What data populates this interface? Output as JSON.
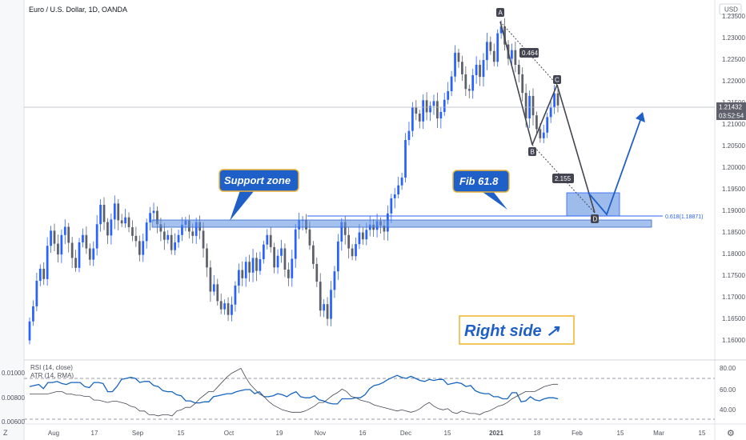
{
  "header": {
    "symbol_title": "Euro / U.S. Dollar, 1D, OANDA",
    "currency_badge": "USD"
  },
  "price_tags": {
    "last_price": "1.21432",
    "countdown": "03:52:54",
    "fib_label": "0.618(1.18871)"
  },
  "pattern": {
    "points": [
      "A",
      "B",
      "C",
      "D"
    ],
    "ratio_ac": "0.464",
    "ratio_bd": "2.155"
  },
  "callouts": {
    "support": "Support zone",
    "fib": "Fib 61.8",
    "right_side": "Right side ↗"
  },
  "indicator": {
    "legend_rsi": "RSI (14, close)",
    "legend_atr": "ATR (14, RMA)",
    "left_ticks": [
      "0.01000",
      "0.00800",
      "0.00600"
    ],
    "right_ticks": [
      "80.00",
      "60.00",
      "40.00"
    ]
  },
  "time_axis": {
    "z_icon_label": "Z",
    "gear_icon_label": "⚙"
  },
  "chart_data": {
    "type": "candlestick",
    "x_tick_labels": [
      "Aug",
      "17",
      "Sep",
      "15",
      "Oct",
      "19",
      "Nov",
      "16",
      "Dec",
      "15",
      "2021",
      "18",
      "Feb",
      "15",
      "Mar",
      "15"
    ],
    "y_tick_labels": [
      "1.23500",
      "1.23000",
      "1.22500",
      "1.22000",
      "1.21500",
      "1.21000",
      "1.20500",
      "1.20000",
      "1.19500",
      "1.19000",
      "1.18500",
      "1.18000",
      "1.17500",
      "1.17000",
      "1.16500",
      "1.16000"
    ],
    "ylim": [
      1.1575,
      1.2375
    ],
    "last_price": 1.21432,
    "fib_level": 1.18871,
    "support_zone": [
      1.1866,
      1.188
    ],
    "colors": {
      "up": "#2962ff",
      "down": "#5d606b",
      "pattern": "#434651",
      "arrow": "#2962ff",
      "zone": "#5b8fe0"
    },
    "candles": [
      [
        1.1599,
        1.1643
      ],
      [
        1.1643,
        1.1678
      ],
      [
        1.1678,
        1.1737
      ],
      [
        1.1737,
        1.1765
      ],
      [
        1.1765,
        1.1741
      ],
      [
        1.1741,
        1.1818
      ],
      [
        1.1818,
        1.1853
      ],
      [
        1.1853,
        1.1823
      ],
      [
        1.1823,
        1.1798
      ],
      [
        1.1798,
        1.1843
      ],
      [
        1.1843,
        1.1862
      ],
      [
        1.1862,
        1.1825
      ],
      [
        1.1825,
        1.179
      ],
      [
        1.179,
        1.1767
      ],
      [
        1.1767,
        1.1826
      ],
      [
        1.1826,
        1.1843
      ],
      [
        1.1843,
        1.1812
      ],
      [
        1.1812,
        1.1786
      ],
      [
        1.1786,
        1.1812
      ],
      [
        1.1812,
        1.1868
      ],
      [
        1.1868,
        1.1913
      ],
      [
        1.1913,
        1.1873
      ],
      [
        1.1873,
        1.1842
      ],
      [
        1.1842,
        1.1879
      ],
      [
        1.1879,
        1.1916
      ],
      [
        1.1916,
        1.1877
      ],
      [
        1.1877,
        1.187
      ],
      [
        1.187,
        1.1884
      ],
      [
        1.1884,
        1.1861
      ],
      [
        1.1861,
        1.1841
      ],
      [
        1.1841,
        1.1829
      ],
      [
        1.1829,
        1.1797
      ],
      [
        1.1797,
        1.1829
      ],
      [
        1.1829,
        1.1872
      ],
      [
        1.1872,
        1.1894
      ],
      [
        1.1894,
        1.1899
      ],
      [
        1.1899,
        1.1868
      ],
      [
        1.1868,
        1.1851
      ],
      [
        1.1851,
        1.1832
      ],
      [
        1.1832,
        1.1843
      ],
      [
        1.1843,
        1.1808
      ],
      [
        1.1808,
        1.1826
      ],
      [
        1.1826,
        1.1843
      ],
      [
        1.1843,
        1.1867
      ],
      [
        1.1867,
        1.1876
      ],
      [
        1.1876,
        1.1851
      ],
      [
        1.1851,
        1.1841
      ],
      [
        1.1841,
        1.1873
      ],
      [
        1.1873,
        1.1853
      ],
      [
        1.1853,
        1.1812
      ],
      [
        1.1812,
        1.1768
      ],
      [
        1.1768,
        1.1712
      ],
      [
        1.1712,
        1.1729
      ],
      [
        1.1729,
        1.169
      ],
      [
        1.169,
        1.1671
      ],
      [
        1.1671,
        1.1685
      ],
      [
        1.1685,
        1.1658
      ],
      [
        1.1658,
        1.1682
      ],
      [
        1.1682,
        1.1726
      ],
      [
        1.1726,
        1.1762
      ],
      [
        1.1762,
        1.1743
      ],
      [
        1.1743,
        1.1781
      ],
      [
        1.1781,
        1.1756
      ],
      [
        1.1756,
        1.179
      ],
      [
        1.179,
        1.176
      ],
      [
        1.176,
        1.1787
      ],
      [
        1.1787,
        1.1821
      ],
      [
        1.1821,
        1.1843
      ],
      [
        1.1843,
        1.1815
      ],
      [
        1.1815,
        1.1768
      ],
      [
        1.1768,
        1.1795
      ],
      [
        1.1795,
        1.1812
      ],
      [
        1.1812,
        1.1763
      ],
      [
        1.1763,
        1.1743
      ],
      [
        1.1743,
        1.1788
      ],
      [
        1.1788,
        1.1856
      ],
      [
        1.1856,
        1.1877
      ],
      [
        1.1877,
        1.1878
      ],
      [
        1.1878,
        1.1856
      ],
      [
        1.1856,
        1.1819
      ],
      [
        1.1819,
        1.1776
      ],
      [
        1.1776,
        1.1735
      ],
      [
        1.1735,
        1.1668
      ],
      [
        1.1668,
        1.1683
      ],
      [
        1.1683,
        1.1649
      ],
      [
        1.1649,
        1.1716
      ],
      [
        1.1716,
        1.1759
      ],
      [
        1.1759,
        1.1828
      ],
      [
        1.1828,
        1.1873
      ],
      [
        1.1873,
        1.1843
      ],
      [
        1.1843,
        1.1812
      ],
      [
        1.1812,
        1.1794
      ],
      [
        1.1794,
        1.1822
      ],
      [
        1.1822,
        1.1849
      ],
      [
        1.1849,
        1.1833
      ],
      [
        1.1833,
        1.1855
      ],
      [
        1.1855,
        1.1867
      ],
      [
        1.1867,
        1.1855
      ],
      [
        1.1855,
        1.1875
      ],
      [
        1.1875,
        1.1865
      ],
      [
        1.1865,
        1.1851
      ],
      [
        1.1851,
        1.1893
      ],
      [
        1.1893,
        1.1928
      ],
      [
        1.1928,
        1.1937
      ],
      [
        1.1937,
        1.1958
      ],
      [
        1.1958,
        1.1976
      ],
      [
        1.1976,
        1.2063
      ],
      [
        1.2063,
        1.2084
      ],
      [
        1.2084,
        1.2138
      ],
      [
        1.2138,
        1.2124
      ],
      [
        1.2124,
        1.2106
      ],
      [
        1.2106,
        1.2155
      ],
      [
        1.2155,
        1.2127
      ],
      [
        1.2127,
        1.2142
      ],
      [
        1.2142,
        1.2153
      ],
      [
        1.2153,
        1.2113
      ],
      [
        1.2113,
        1.2128
      ],
      [
        1.2128,
        1.2156
      ],
      [
        1.2156,
        1.2176
      ],
      [
        1.2176,
        1.221
      ],
      [
        1.221,
        1.2265
      ],
      [
        1.2265,
        1.2244
      ],
      [
        1.2244,
        1.2215
      ],
      [
        1.2215,
        1.2181
      ],
      [
        1.2181,
        1.2177
      ],
      [
        1.2177,
        1.2213
      ],
      [
        1.2213,
        1.2237
      ],
      [
        1.2237,
        1.2209
      ],
      [
        1.2209,
        1.2248
      ],
      [
        1.2248,
        1.229
      ],
      [
        1.229,
        1.2269
      ],
      [
        1.2269,
        1.2244
      ],
      [
        1.2244,
        1.231
      ],
      [
        1.231,
        1.2326
      ],
      [
        1.2326,
        1.2284
      ],
      [
        1.2284,
        1.2251
      ],
      [
        1.2251,
        1.2271
      ],
      [
        1.2271,
        1.2237
      ],
      [
        1.2237,
        1.2215
      ],
      [
        1.2215,
        1.2172
      ],
      [
        1.2172,
        1.2113
      ],
      [
        1.2113,
        1.2165
      ],
      [
        1.2165,
        1.212
      ],
      [
        1.212,
        1.2088
      ],
      [
        1.2088,
        1.2067
      ],
      [
        1.2067,
        1.208
      ],
      [
        1.208,
        1.2116
      ],
      [
        1.2116,
        1.2138
      ],
      [
        1.2138,
        1.2171
      ],
      [
        1.2171,
        1.2143
      ]
    ],
    "pattern_prices": {
      "A": 1.2346,
      "B": 1.2055,
      "C": 1.2194,
      "D": 1.1887
    },
    "rsi_series": [
      62,
      63,
      64,
      60,
      66,
      66,
      67,
      65,
      64,
      66,
      66,
      66,
      62,
      61,
      66,
      66,
      65,
      57,
      57,
      62,
      69,
      70,
      71,
      70,
      66,
      67,
      67,
      63,
      62,
      58,
      57,
      57,
      54,
      53,
      48,
      48,
      46,
      46,
      47,
      47,
      52,
      53,
      54,
      55,
      55,
      57,
      58,
      59,
      59,
      55,
      57,
      52,
      52,
      53,
      55,
      54,
      52,
      55,
      57,
      52,
      51,
      51,
      53,
      49,
      48,
      46,
      45,
      45,
      50,
      50,
      50,
      51,
      51,
      54,
      60,
      63,
      64,
      66,
      69,
      71,
      73,
      71,
      70,
      72,
      70,
      68,
      67,
      69,
      68,
      69,
      69,
      64,
      65,
      66,
      65,
      62,
      63,
      58,
      56,
      55,
      55,
      52,
      52,
      50,
      50,
      56,
      56,
      47,
      48,
      52,
      49,
      48,
      50,
      51,
      51,
      50
    ],
    "atr_series": [
      0.0082,
      0.0082,
      0.0082,
      0.0082,
      0.0082,
      0.0083,
      0.0084,
      0.0084,
      0.0082,
      0.0082,
      0.0081,
      0.0081,
      0.008,
      0.008,
      0.0077,
      0.0077,
      0.0076,
      0.0075,
      0.0076,
      0.0076,
      0.0075,
      0.0074,
      0.0072,
      0.0071,
      0.0068,
      0.0068,
      0.0065,
      0.0065,
      0.0064,
      0.0065,
      0.0065,
      0.0064,
      0.0068,
      0.0069,
      0.0071,
      0.0071,
      0.0074,
      0.0078,
      0.0081,
      0.0084,
      0.0084,
      0.0088,
      0.0092,
      0.0096,
      0.0099,
      0.0101,
      0.0103,
      0.0096,
      0.009,
      0.0086,
      0.0082,
      0.008,
      0.0076,
      0.0073,
      0.0071,
      0.0069,
      0.0068,
      0.0067,
      0.0067,
      0.0067,
      0.0068,
      0.007,
      0.0072,
      0.0075,
      0.0075,
      0.0078,
      0.0081,
      0.0083,
      0.0086,
      0.0084,
      0.008,
      0.0079,
      0.0077,
      0.0076,
      0.0075,
      0.0073,
      0.0072,
      0.0071,
      0.007,
      0.0069,
      0.0068,
      0.0069,
      0.0068,
      0.0067,
      0.0068,
      0.007,
      0.0073,
      0.0075,
      0.0072,
      0.007,
      0.0069,
      0.007,
      0.0067,
      0.0066,
      0.0068,
      0.0067,
      0.0066,
      0.0066,
      0.0065,
      0.0067,
      0.0068,
      0.007,
      0.0072,
      0.0073,
      0.0075,
      0.0078,
      0.008,
      0.0082,
      0.0084,
      0.0084,
      0.0084,
      0.0086,
      0.0088,
      0.0089,
      0.009,
      0.009
    ],
    "indicator_lines": {
      "upper": 70,
      "lower": 30
    }
  }
}
